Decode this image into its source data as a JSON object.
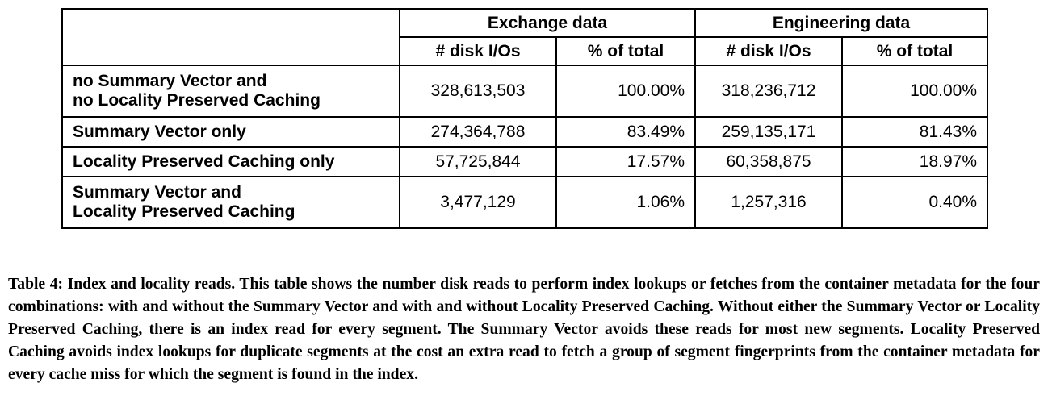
{
  "table": {
    "group_headers": [
      "Exchange data",
      "Engineering data"
    ],
    "sub_headers": [
      "# disk I/Os",
      "% of total",
      "# disk I/Os",
      "% of total"
    ],
    "rows": [
      {
        "label_line1": "no Summary Vector and",
        "label_line2": "no Locality Preserved Caching",
        "cells": [
          "328,613,503",
          "100.00%",
          "318,236,712",
          "100.00%"
        ]
      },
      {
        "label_line1": "Summary Vector only",
        "label_line2": "",
        "cells": [
          "274,364,788",
          "83.49%",
          "259,135,171",
          "81.43%"
        ]
      },
      {
        "label_line1": "Locality Preserved Caching only",
        "label_line2": "",
        "cells": [
          "57,725,844",
          "17.57%",
          "60,358,875",
          "18.97%"
        ]
      },
      {
        "label_line1": "Summary Vector and",
        "label_line2": "Locality Preserved Caching",
        "cells": [
          "3,477,129",
          "1.06%",
          "1,257,316",
          "0.40%"
        ]
      }
    ]
  },
  "caption": "Table 4: Index and locality reads. This table shows the number disk reads to perform index lookups or fetches from the container metadata for the four combinations: with and without the Summary Vector and with and without Locality Preserved Caching. Without either the Summary Vector or Locality Preserved Caching, there is an index read for every segment. The Summary Vector avoids these reads for most new segments. Locality Preserved Caching avoids index lookups for duplicate segments at the cost an extra read to fetch a group of segment fingerprints from the container metadata for every cache miss for which the segment is found in the index."
}
